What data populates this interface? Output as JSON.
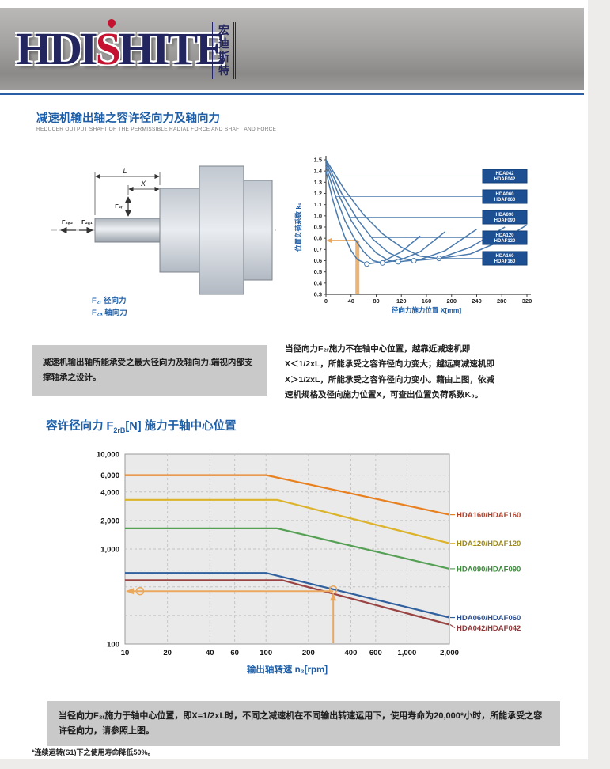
{
  "page": {
    "header": {
      "logo_main_1": "HDI",
      "logo_main_s": "S",
      "logo_main_2": "HITE",
      "logo_chinese": [
        "宏",
        "迪",
        "斯",
        "特"
      ]
    },
    "section1": {
      "title": "减速机输出轴之容许径向力及轴向力",
      "subtitle": "REDUCER OUTPUT SHAFT OF THE PERMISSIBLE RADIAL FORCE AND SHAFT AND FORCE",
      "diagram": {
        "dim_l": "L",
        "dim_x": "X",
        "f2r": "F₂ᵣ",
        "f2a2": "F₂ₐ₂",
        "f2a1": "F₂ₐ₁",
        "caption_radial": "F₂ᵣ 径向力",
        "caption_axial": "F₂ₐ 轴向力"
      },
      "note_left": "减速机输出轴所能承受之最大径向力及轴向力,端视内部支撑轴承之设计。",
      "note_right_lines": [
        "当径向力F₂ᵣ施力不在轴中心位置，越靠近减速机即",
        "X＜1/2xL，所能承受之容许径向力变大；越远离减速机即",
        "X＞1/2xL，所能承受之容许径向力变小。藉由上图，依减",
        "速机规格及径向施力位置X，可查出位置负荷系数K₀。"
      ]
    },
    "section2": {
      "title_pre": "容许径向力 F",
      "title_sub": "2rB",
      "title_post": "[N] 施力于轴中心位置",
      "note_before": "当径向力F₂ᵣ施力于轴中心位置，即X=1/2xL时，不同之减速机在不同输出转速运用下，使用寿命为",
      "note_bold": "20,000*",
      "note_after": "小时，所能承受之容许径向力，请参照上图。",
      "footnote": "*连续运转(S1)下之使用寿命降低50%。"
    }
  },
  "chart_data": [
    {
      "type": "line",
      "title": "",
      "xlabel": "径向力施力位置 X[mm]",
      "ylabel": "位置负荷系数 k₀",
      "xlim": [
        0,
        320
      ],
      "ylim": [
        0.3,
        1.5
      ],
      "xticks": [
        0,
        40,
        80,
        120,
        160,
        200,
        240,
        280,
        320
      ],
      "yticks": [
        0.3,
        0.4,
        0.5,
        0.6,
        0.7,
        0.8,
        0.9,
        1.0,
        1.1,
        1.2,
        1.3,
        1.4,
        1.5
      ],
      "grid": false,
      "label_boxes": "right",
      "series": [
        {
          "name": "HDA042/HDAF042",
          "label_lines": [
            "HDA042",
            "HDAF042"
          ],
          "points": [
            [
              0,
              1.4
            ],
            [
              10,
              1.16
            ],
            [
              20,
              0.97
            ],
            [
              30,
              0.81
            ],
            [
              40,
              0.69
            ],
            [
              50,
              0.61
            ],
            [
              65,
              0.57
            ],
            [
              90,
              0.59
            ],
            [
              120,
              0.68
            ],
            [
              150,
              0.82
            ]
          ]
        },
        {
          "name": "HDA060/HDAF060",
          "label_lines": [
            "HDA060",
            "HDAF060"
          ],
          "points": [
            [
              0,
              1.44
            ],
            [
              15,
              1.18
            ],
            [
              30,
              0.96
            ],
            [
              45,
              0.8
            ],
            [
              60,
              0.68
            ],
            [
              75,
              0.6
            ],
            [
              90,
              0.58
            ],
            [
              120,
              0.61
            ],
            [
              150,
              0.68
            ],
            [
              190,
              0.86
            ]
          ]
        },
        {
          "name": "HDA090/HDAF090",
          "label_lines": [
            "HDA090",
            "HDAF090"
          ],
          "points": [
            [
              0,
              1.47
            ],
            [
              20,
              1.19
            ],
            [
              40,
              0.96
            ],
            [
              60,
              0.79
            ],
            [
              80,
              0.67
            ],
            [
              100,
              0.6
            ],
            [
              115,
              0.59
            ],
            [
              150,
              0.61
            ],
            [
              190,
              0.69
            ],
            [
              240,
              0.88
            ]
          ]
        },
        {
          "name": "HDA120/HDAF120",
          "label_lines": [
            "HDA120",
            "HDAF120"
          ],
          "points": [
            [
              0,
              1.49
            ],
            [
              25,
              1.2
            ],
            [
              50,
              0.97
            ],
            [
              75,
              0.79
            ],
            [
              100,
              0.67
            ],
            [
              120,
              0.62
            ],
            [
              140,
              0.6
            ],
            [
              180,
              0.62
            ],
            [
              230,
              0.72
            ],
            [
              285,
              0.9
            ]
          ]
        },
        {
          "name": "HDA160/HDAF160",
          "label_lines": [
            "HDA160",
            "HDAF160"
          ],
          "points": [
            [
              0,
              1.5
            ],
            [
              30,
              1.23
            ],
            [
              60,
              1.01
            ],
            [
              90,
              0.84
            ],
            [
              120,
              0.72
            ],
            [
              150,
              0.64
            ],
            [
              180,
              0.62
            ],
            [
              230,
              0.66
            ],
            [
              280,
              0.78
            ],
            [
              320,
              0.92
            ]
          ]
        }
      ],
      "min_markers": [
        [
          65,
          0.57
        ],
        [
          90,
          0.58
        ],
        [
          115,
          0.59
        ],
        [
          140,
          0.6
        ],
        [
          180,
          0.62
        ]
      ],
      "guide": {
        "x": 50,
        "k0": 0.78
      }
    },
    {
      "type": "line",
      "title": "",
      "xscale": "log",
      "yscale": "log",
      "xlabel": "输出轴转速 n₂[rpm]",
      "ylabel": "",
      "xlim": [
        10,
        2000
      ],
      "ylim": [
        100,
        10000
      ],
      "xtick_vals": [
        10,
        20,
        40,
        60,
        100,
        200,
        400,
        600,
        1000,
        2000
      ],
      "xtick_labels": [
        "10",
        "20",
        "40",
        "60",
        "100",
        "200",
        "400",
        "600",
        "1,000",
        "2,000"
      ],
      "ytick_vals": [
        100,
        1000,
        2000,
        4000,
        6000,
        10000
      ],
      "ytick_labels": [
        "100",
        "1,000",
        "2,000",
        "4,000",
        "6,000",
        "10,000"
      ],
      "ygrid": [
        200,
        400,
        600,
        1000,
        2000,
        4000,
        6000
      ],
      "grid": true,
      "legend_position": "right",
      "series": [
        {
          "name": "HDA160/HDAF160",
          "color": "#E8801F",
          "legend_color": "#B5402A",
          "points": [
            [
              10,
              6000
            ],
            [
              100,
              6000
            ],
            [
              2000,
              2300
            ]
          ]
        },
        {
          "name": "HDA120/HDAF120",
          "color": "#DCB32B",
          "legend_color": "#9E8A1C",
          "points": [
            [
              10,
              3300
            ],
            [
              120,
              3300
            ],
            [
              2000,
              1150
            ]
          ]
        },
        {
          "name": "HDA090/HDAF090",
          "color": "#55A055",
          "legend_color": "#3D8A3D",
          "points": [
            [
              10,
              1650
            ],
            [
              120,
              1650
            ],
            [
              2000,
              620
            ]
          ]
        },
        {
          "name": "HDA060/HDAF060",
          "color": "#31609F",
          "legend_color": "#2A4F8F",
          "points": [
            [
              10,
              560
            ],
            [
              100,
              560
            ],
            [
              2000,
              190
            ]
          ]
        },
        {
          "name": "HDA042/HDAF042",
          "color": "#9B4444",
          "legend_color": "#8F3A3A",
          "points": [
            [
              10,
              470
            ],
            [
              130,
              470
            ],
            [
              2000,
              160
            ]
          ]
        }
      ],
      "guide": {
        "n2": 300,
        "f": 360
      }
    }
  ],
  "colors": {
    "accent_blue": "#1F5FA8",
    "curve_blue": "#4A7AAD",
    "label_box_bg": "#1D4F93",
    "guide_orange": "#E9A85E",
    "note_box_bg": "#C9C9C9",
    "logo_navy": "#23265E",
    "logo_red": "#C41230",
    "axis_dark": "#444444"
  }
}
